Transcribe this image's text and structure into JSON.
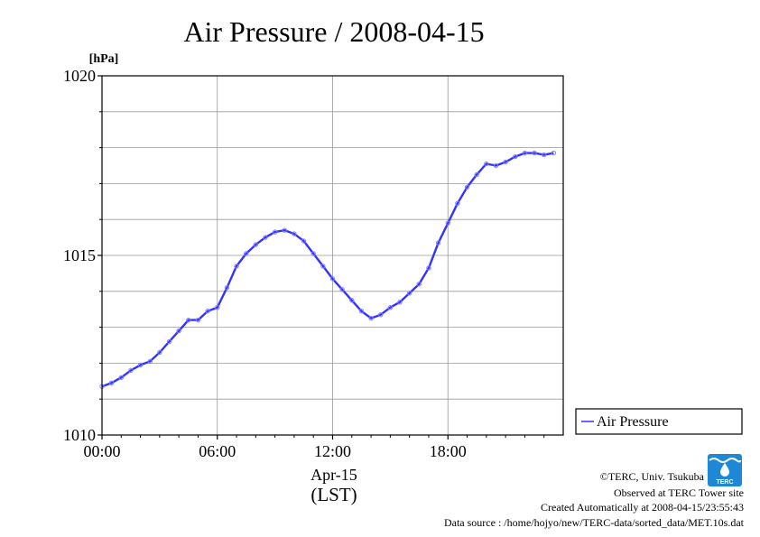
{
  "title": "Air Pressure / 2008-04-15",
  "colors": {
    "series": "#3333ff",
    "point": "#8080ff",
    "grid": "#999999"
  },
  "chart_data": {
    "type": "line",
    "title": "Air Pressure / 2008-04-15",
    "ylabel_unit": "[hPa]",
    "ylim": [
      1010,
      1020
    ],
    "xlim": [
      0,
      24
    ],
    "x_unit": "hours",
    "y_ticks": [
      {
        "value": 1010,
        "label": "1010"
      },
      {
        "value": 1015,
        "label": "1015"
      },
      {
        "value": 1020,
        "label": "1020"
      }
    ],
    "y_minor_grid": [
      1011,
      1012,
      1013,
      1014,
      1016,
      1017,
      1018,
      1019
    ],
    "x_ticks": [
      {
        "value": 0,
        "label": "00:00"
      },
      {
        "value": 6,
        "label": "06:00"
      },
      {
        "value": 12,
        "label": "12:00"
      },
      {
        "value": 18,
        "label": "18:00"
      }
    ],
    "xlabel_date": "Apr-15",
    "xlabel_zone": "(LST)",
    "grid": true,
    "legend_position": "right",
    "series": [
      {
        "name": "Air Pressure",
        "x": [
          0,
          0.5,
          1,
          1.5,
          2,
          2.5,
          3,
          3.5,
          4,
          4.5,
          5,
          5.5,
          6,
          6.5,
          7,
          7.5,
          8,
          8.5,
          9,
          9.5,
          10,
          10.5,
          11,
          11.5,
          12,
          12.5,
          13,
          13.5,
          14,
          14.5,
          15,
          15.5,
          16,
          16.5,
          17,
          17.5,
          18,
          18.5,
          19,
          19.5,
          20,
          20.5,
          21,
          21.5,
          22,
          22.5,
          23,
          23.5
        ],
        "values": [
          1011.35,
          1011.45,
          1011.6,
          1011.8,
          1011.95,
          1012.05,
          1012.3,
          1012.6,
          1012.9,
          1013.2,
          1013.2,
          1013.45,
          1013.55,
          1014.1,
          1014.7,
          1015.05,
          1015.3,
          1015.5,
          1015.65,
          1015.7,
          1015.6,
          1015.4,
          1015.05,
          1014.7,
          1014.35,
          1014.05,
          1013.75,
          1013.45,
          1013.25,
          1013.35,
          1013.55,
          1013.7,
          1013.95,
          1014.2,
          1014.65,
          1015.35,
          1015.9,
          1016.45,
          1016.9,
          1017.25,
          1017.55,
          1017.5,
          1017.6,
          1017.75,
          1017.85,
          1017.85,
          1017.8,
          1017.85
        ]
      }
    ]
  },
  "credits": {
    "copyright": "©TERC, Univ. Tsukuba",
    "observed": "Observed at TERC Tower site",
    "created": "Created Automatically at 2008-04-15/23:55:43",
    "source": "Data source : /home/hojyo/new/TERC-data/sorted_data/MET.10s.dat",
    "logo_text": "TERC"
  }
}
